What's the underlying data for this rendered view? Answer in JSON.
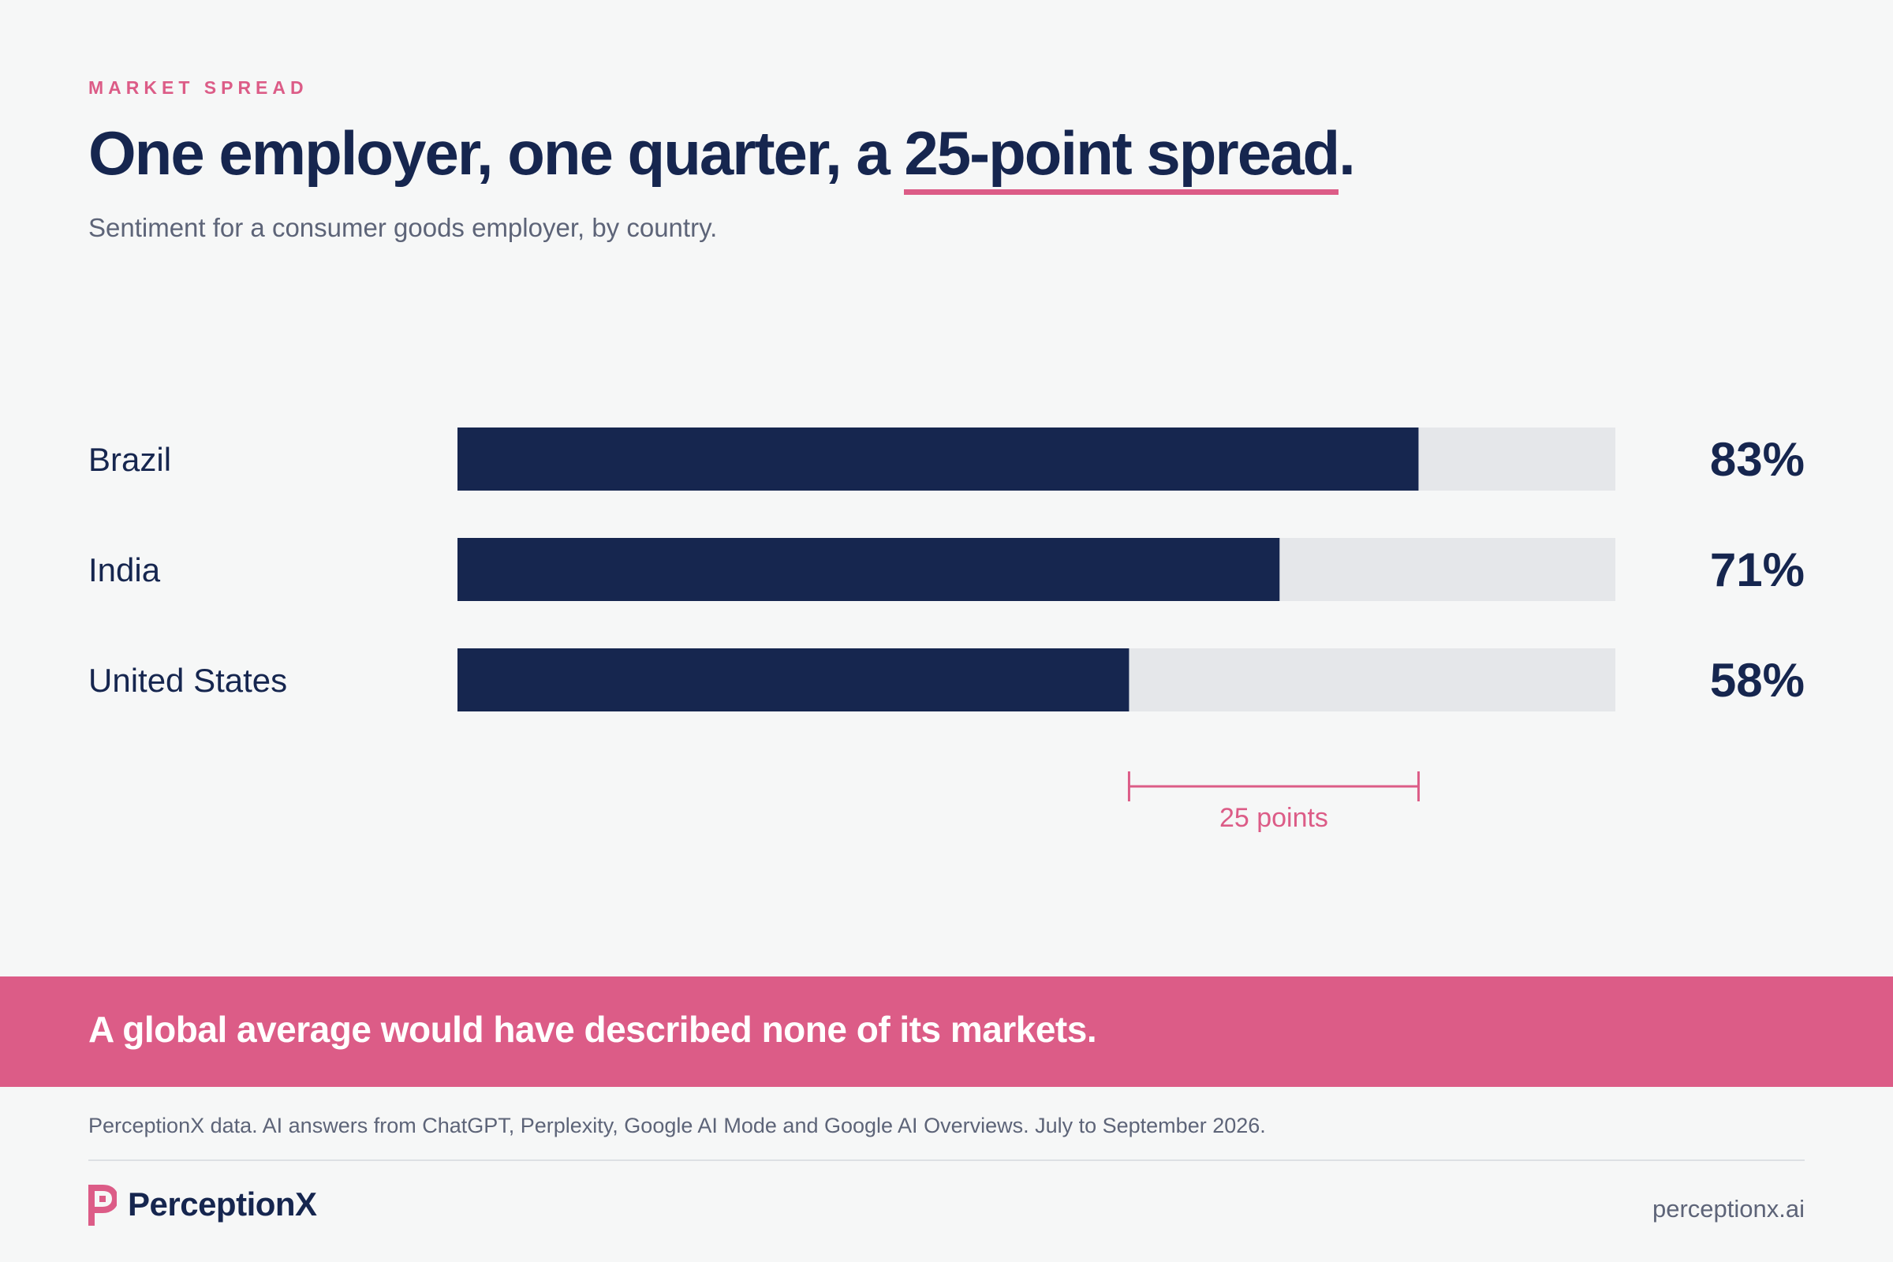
{
  "header": {
    "eyebrow": "MARKET SPREAD",
    "headline_start": "One employer, one quarter, a ",
    "headline_highlight": "25-point spread",
    "headline_end": ".",
    "subtitle": "Sentiment for a consumer goods employer, by country."
  },
  "chart_data": {
    "type": "bar",
    "orientation": "horizontal",
    "categories": [
      "Brazil",
      "India",
      "United States"
    ],
    "values": [
      83,
      71,
      58
    ],
    "value_labels": [
      "83%",
      "71%",
      "58%"
    ],
    "xlim": [
      0,
      100
    ],
    "grid": false,
    "annotation": {
      "from": 58,
      "to": 83,
      "label": "25 points"
    }
  },
  "banner": {
    "text": "A global average would have described none of its markets."
  },
  "footer": {
    "source": "PerceptionX data. AI answers from ChatGPT, Perplexity, Google AI Mode and Google AI Overviews. July to September 2026.",
    "brand": "PerceptionX",
    "site": "perceptionx.ai"
  },
  "colors": {
    "navy": "#16264f",
    "accent": "#dc5c87",
    "track": "#e5e7ea",
    "background": "#f6f7f7"
  }
}
